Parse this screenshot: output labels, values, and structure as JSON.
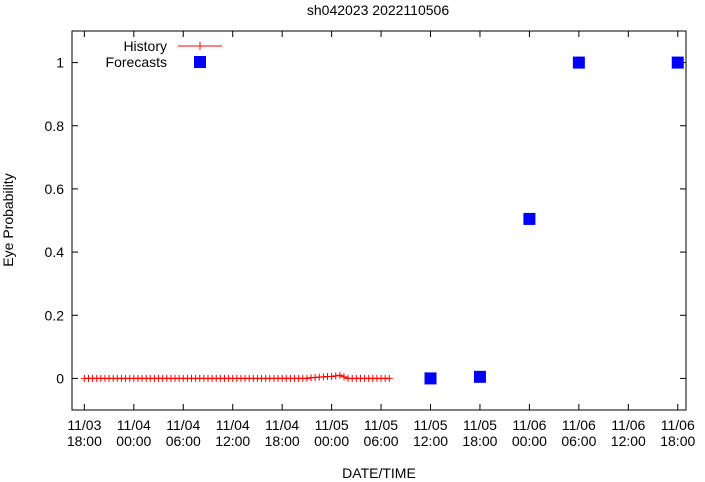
{
  "chart_data": {
    "type": "scatter",
    "title": "sh042023 2022110506",
    "xlabel": "DATE/TIME",
    "ylabel": "Eye Probability",
    "x_unit": "hours since 11/03 18:00",
    "xlim": [
      -1.5,
      73
    ],
    "ylim": [
      -0.1,
      1.1
    ],
    "x_ticks": [
      {
        "x": 0,
        "line1": "11/03",
        "line2": "18:00"
      },
      {
        "x": 6,
        "line1": "11/04",
        "line2": "00:00"
      },
      {
        "x": 12,
        "line1": "11/04",
        "line2": "06:00"
      },
      {
        "x": 18,
        "line1": "11/04",
        "line2": "12:00"
      },
      {
        "x": 24,
        "line1": "11/04",
        "line2": "18:00"
      },
      {
        "x": 30,
        "line1": "11/05",
        "line2": "00:00"
      },
      {
        "x": 36,
        "line1": "11/05",
        "line2": "06:00"
      },
      {
        "x": 42,
        "line1": "11/05",
        "line2": "12:00"
      },
      {
        "x": 48,
        "line1": "11/05",
        "line2": "18:00"
      },
      {
        "x": 54,
        "line1": "11/06",
        "line2": "00:00"
      },
      {
        "x": 60,
        "line1": "11/06",
        "line2": "06:00"
      },
      {
        "x": 66,
        "line1": "11/06",
        "line2": "12:00"
      },
      {
        "x": 72,
        "line1": "11/06",
        "line2": "18:00"
      }
    ],
    "y_ticks": [
      {
        "y": 0,
        "label": "0"
      },
      {
        "y": 0.2,
        "label": "0.2"
      },
      {
        "y": 0.4,
        "label": "0.4"
      },
      {
        "y": 0.6,
        "label": "0.6"
      },
      {
        "y": 0.8,
        "label": "0.8"
      },
      {
        "y": 1,
        "label": "1"
      }
    ],
    "legend_position": "top-left",
    "series": [
      {
        "name": "History",
        "style": "line-plus",
        "color": "#ff0000",
        "x": [
          0,
          0.5,
          1,
          1.5,
          2,
          2.5,
          3,
          3.5,
          4,
          4.5,
          5,
          5.5,
          6,
          6.5,
          7,
          7.5,
          8,
          8.5,
          9,
          9.5,
          10,
          10.5,
          11,
          11.5,
          12,
          12.5,
          13,
          13.5,
          14,
          14.5,
          15,
          15.5,
          16,
          16.5,
          17,
          17.5,
          18,
          18.5,
          19,
          19.5,
          20,
          20.5,
          21,
          21.5,
          22,
          22.5,
          23,
          23.5,
          24,
          24.5,
          25,
          25.5,
          26,
          26.5,
          27,
          27.5,
          28,
          28.5,
          29,
          29.5,
          30,
          30.5,
          31,
          31.5,
          32,
          32.5,
          33,
          33.5,
          34,
          34.5,
          35,
          35.5,
          36,
          36.5,
          37
        ],
        "y": [
          0,
          0,
          0,
          0,
          0,
          0,
          0,
          0,
          0,
          0,
          0,
          0,
          0,
          0,
          0,
          0,
          0,
          0,
          0,
          0,
          0,
          0,
          0,
          0,
          0,
          0,
          0,
          0,
          0,
          0,
          0,
          0,
          0,
          0,
          0,
          0,
          0,
          0,
          0,
          0,
          0,
          0,
          0,
          0,
          0,
          0,
          0,
          0,
          0,
          0,
          0,
          0,
          0,
          0,
          0,
          0.002,
          0.003,
          0.004,
          0.005,
          0.006,
          0.006,
          0.008,
          0.01,
          0.005,
          0,
          0,
          0,
          0,
          0,
          0,
          0,
          0,
          0,
          0,
          0
        ]
      },
      {
        "name": "Forecasts",
        "style": "filled-square",
        "color": "#0000ff",
        "x": [
          42,
          48,
          54,
          60,
          72
        ],
        "y": [
          0,
          0.005,
          0.505,
          1.0,
          1.0
        ]
      }
    ]
  }
}
